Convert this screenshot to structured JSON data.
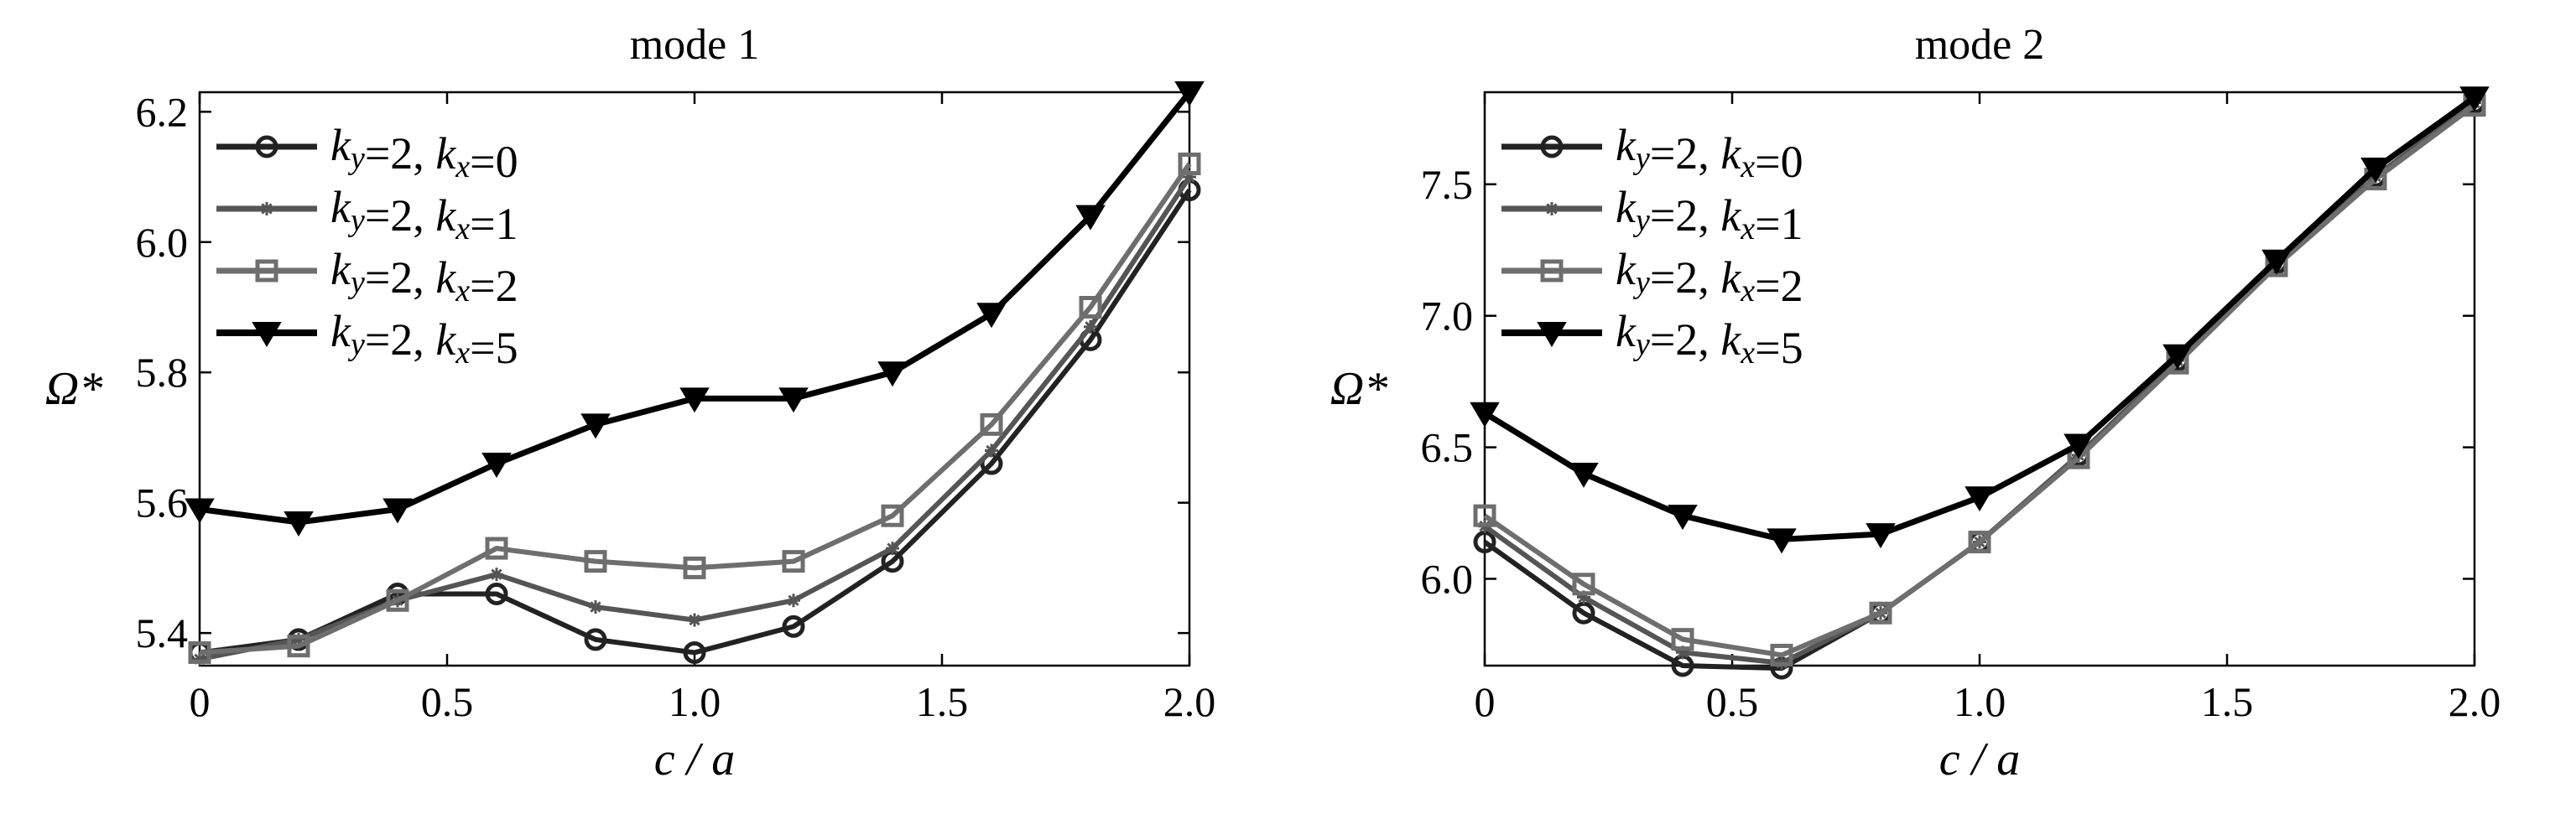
{
  "chart_data": [
    {
      "type": "line",
      "title": "mode 1",
      "xlabel": "c / a",
      "ylabel": "Ω*",
      "xlim": [
        0,
        2.0
      ],
      "ylim": [
        5.35,
        6.23
      ],
      "xticks": [
        0,
        0.5,
        1.0,
        1.5,
        2.0
      ],
      "xtick_labels": [
        "0",
        "0.5",
        "1.0",
        "1.5",
        "2.0"
      ],
      "yticks": [
        5.4,
        5.6,
        5.8,
        6.0,
        6.2
      ],
      "ytick_labels": [
        "5.4",
        "5.6",
        "5.8",
        "6.0",
        "6.2"
      ],
      "legend_position": "top-left",
      "x": [
        0,
        0.2,
        0.4,
        0.6,
        0.8,
        1.0,
        1.2,
        1.4,
        1.6,
        1.8,
        2.0
      ],
      "series": [
        {
          "name": "ky=2, kx=0",
          "label": {
            "k1": "k",
            "s1": "y",
            "v1": "=2, ",
            "k2": "k",
            "s2": "x",
            "v2": "=0"
          },
          "marker": "circle",
          "color": "#222222",
          "values": [
            5.37,
            5.39,
            5.46,
            5.46,
            5.39,
            5.37,
            5.41,
            5.51,
            5.66,
            5.85,
            6.08
          ]
        },
        {
          "name": "ky=2, kx=1",
          "label": {
            "k1": "k",
            "s1": "y",
            "v1": "=2, ",
            "k2": "k",
            "s2": "x",
            "v2": "=1"
          },
          "marker": "star",
          "color": "#555555",
          "values": [
            5.36,
            5.39,
            5.45,
            5.49,
            5.44,
            5.42,
            5.45,
            5.53,
            5.68,
            5.87,
            6.1
          ]
        },
        {
          "name": "ky=2, kx=2",
          "label": {
            "k1": "k",
            "s1": "y",
            "v1": "=2, ",
            "k2": "k",
            "s2": "x",
            "v2": "=2"
          },
          "marker": "square",
          "color": "#6e6e6e",
          "values": [
            5.37,
            5.38,
            5.45,
            5.53,
            5.51,
            5.5,
            5.51,
            5.58,
            5.72,
            5.9,
            6.12
          ]
        },
        {
          "name": "ky=2, kx=5",
          "label": {
            "k1": "k",
            "s1": "y",
            "v1": "=2, ",
            "k2": "k",
            "s2": "x",
            "v2": "=5"
          },
          "marker": "triangle-down",
          "color": "#000000",
          "values": [
            5.59,
            5.57,
            5.59,
            5.66,
            5.72,
            5.76,
            5.76,
            5.8,
            5.89,
            6.04,
            6.23
          ]
        }
      ]
    },
    {
      "type": "line",
      "title": "mode 2",
      "xlabel": "c / a",
      "ylabel": "Ω*",
      "xlim": [
        0,
        2.0
      ],
      "ylim": [
        5.67,
        7.85
      ],
      "xticks": [
        0,
        0.5,
        1.0,
        1.5,
        2.0
      ],
      "xtick_labels": [
        "0",
        "0.5",
        "1.0",
        "1.5",
        "2.0"
      ],
      "yticks": [
        6.0,
        6.5,
        7.0,
        7.5
      ],
      "ytick_labels": [
        "6.0",
        "6.5",
        "7.0",
        "7.5"
      ],
      "legend_position": "top-left",
      "x": [
        0,
        0.2,
        0.4,
        0.6,
        0.8,
        1.0,
        1.2,
        1.4,
        1.6,
        1.8,
        2.0
      ],
      "series": [
        {
          "name": "ky=2, kx=0",
          "label": {
            "k1": "k",
            "s1": "y",
            "v1": "=2, ",
            "k2": "k",
            "s2": "x",
            "v2": "=0"
          },
          "marker": "circle",
          "color": "#222222",
          "values": [
            6.14,
            5.87,
            5.67,
            5.66,
            5.87,
            6.14,
            6.47,
            6.83,
            7.2,
            7.53,
            7.81
          ]
        },
        {
          "name": "ky=2, kx=1",
          "label": {
            "k1": "k",
            "s1": "y",
            "v1": "=2, ",
            "k2": "k",
            "s2": "x",
            "v2": "=1"
          },
          "marker": "star",
          "color": "#555555",
          "values": [
            6.2,
            5.93,
            5.72,
            5.68,
            5.87,
            6.14,
            6.47,
            6.83,
            7.2,
            7.53,
            7.81
          ]
        },
        {
          "name": "ky=2, kx=2",
          "label": {
            "k1": "k",
            "s1": "y",
            "v1": "=2, ",
            "k2": "k",
            "s2": "x",
            "v2": "=2"
          },
          "marker": "square",
          "color": "#6e6e6e",
          "values": [
            6.24,
            5.98,
            5.77,
            5.71,
            5.87,
            6.14,
            6.46,
            6.82,
            7.19,
            7.52,
            7.8
          ]
        },
        {
          "name": "ky=2, kx=5",
          "label": {
            "k1": "k",
            "s1": "y",
            "v1": "=2, ",
            "k2": "k",
            "s2": "x",
            "v2": "=5"
          },
          "marker": "triangle-down",
          "color": "#000000",
          "values": [
            6.63,
            6.4,
            6.24,
            6.15,
            6.17,
            6.31,
            6.51,
            6.85,
            7.21,
            7.56,
            7.83
          ]
        }
      ]
    }
  ]
}
